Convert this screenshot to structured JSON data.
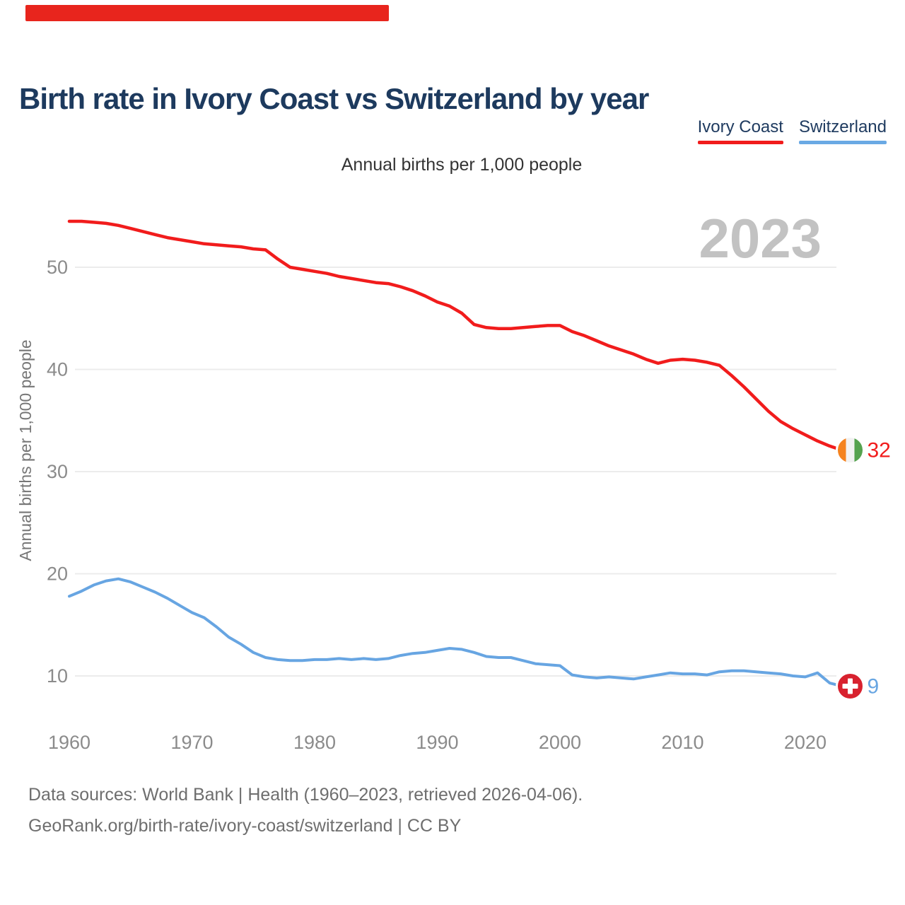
{
  "page": {
    "top_accent_color": "#e8251d",
    "background": "#ffffff",
    "grid_color": "#ececec",
    "tick_color": "#8b8b8b",
    "title_color": "#1d3a5e",
    "watermark_color": "#c2c2c2"
  },
  "header": {
    "title": "Birth rate in Ivory Coast vs Switzerland by year",
    "subtitle": "Annual births per 1,000 people"
  },
  "legend": {
    "items": [
      {
        "label": "Ivory Coast",
        "color": "#f11c1c"
      },
      {
        "label": "Switzerland",
        "color": "#6aa9e4"
      }
    ]
  },
  "watermark": "2023",
  "chart_data": {
    "type": "line",
    "title": "Birth rate in Ivory Coast vs Switzerland by year",
    "ylabel": "Annual births per 1,000 people",
    "xlabel": "",
    "x_ticks": [
      1960,
      1970,
      1980,
      1990,
      2000,
      2010,
      2020
    ],
    "y_ticks": [
      10,
      20,
      30,
      40,
      50
    ],
    "x_range": [
      1960,
      2023
    ],
    "y_implied_range": [
      6.5,
      56
    ],
    "grid": "horizontal",
    "legend_position": "top-right",
    "annotation_year": "2023",
    "years": [
      1960,
      1961,
      1962,
      1963,
      1964,
      1965,
      1966,
      1967,
      1968,
      1969,
      1970,
      1971,
      1972,
      1973,
      1974,
      1975,
      1976,
      1977,
      1978,
      1979,
      1980,
      1981,
      1982,
      1983,
      1984,
      1985,
      1986,
      1987,
      1988,
      1989,
      1990,
      1991,
      1992,
      1993,
      1994,
      1995,
      1996,
      1997,
      1998,
      1999,
      2000,
      2001,
      2002,
      2003,
      2004,
      2005,
      2006,
      2007,
      2008,
      2009,
      2010,
      2011,
      2012,
      2013,
      2014,
      2015,
      2016,
      2017,
      2018,
      2019,
      2020,
      2021,
      2022,
      2023
    ],
    "series": [
      {
        "id": "ivory-coast",
        "name": "Ivory Coast",
        "color": "#f11c1c",
        "end_label": "32",
        "flag": "ci",
        "flag_colors": [
          "#f5831f",
          "#f2f2f2",
          "#55a24f"
        ],
        "values": [
          54.5,
          54.5,
          54.4,
          54.3,
          54.1,
          53.8,
          53.5,
          53.2,
          52.9,
          52.7,
          52.5,
          52.3,
          52.2,
          52.1,
          52.0,
          51.8,
          51.7,
          50.8,
          50.0,
          49.8,
          49.6,
          49.4,
          49.1,
          48.9,
          48.7,
          48.5,
          48.4,
          48.1,
          47.7,
          47.2,
          46.6,
          46.2,
          45.5,
          44.4,
          44.1,
          44.0,
          44.0,
          44.1,
          44.2,
          44.3,
          44.3,
          43.7,
          43.3,
          42.8,
          42.3,
          41.9,
          41.5,
          41.0,
          40.6,
          40.9,
          41.0,
          40.9,
          40.7,
          40.4,
          39.4,
          38.3,
          37.1,
          35.9,
          34.9,
          34.2,
          33.6,
          33.0,
          32.5,
          32.1
        ]
      },
      {
        "id": "switzerland",
        "name": "Switzerland",
        "color": "#67a5e2",
        "end_label": "9",
        "flag": "ch",
        "flag_colors": [
          "#d8222f",
          "#ffffff"
        ],
        "values": [
          17.8,
          18.3,
          18.9,
          19.3,
          19.5,
          19.2,
          18.7,
          18.2,
          17.6,
          16.9,
          16.2,
          15.7,
          14.8,
          13.8,
          13.1,
          12.3,
          11.8,
          11.6,
          11.5,
          11.5,
          11.6,
          11.6,
          11.7,
          11.6,
          11.7,
          11.6,
          11.7,
          12.0,
          12.2,
          12.3,
          12.5,
          12.7,
          12.6,
          12.3,
          11.9,
          11.8,
          11.8,
          11.5,
          11.2,
          11.1,
          11.0,
          10.1,
          9.9,
          9.8,
          9.9,
          9.8,
          9.7,
          9.9,
          10.1,
          10.3,
          10.2,
          10.2,
          10.1,
          10.4,
          10.5,
          10.5,
          10.4,
          10.3,
          10.2,
          10.0,
          9.9,
          10.3,
          9.3,
          9.0
        ]
      }
    ]
  },
  "footer": {
    "line1": "Data sources: World Bank | Health (1960–2023, retrieved 2026-04-06).",
    "line2": "GeoRank.org/birth-rate/ivory-coast/switzerland | CC BY"
  }
}
